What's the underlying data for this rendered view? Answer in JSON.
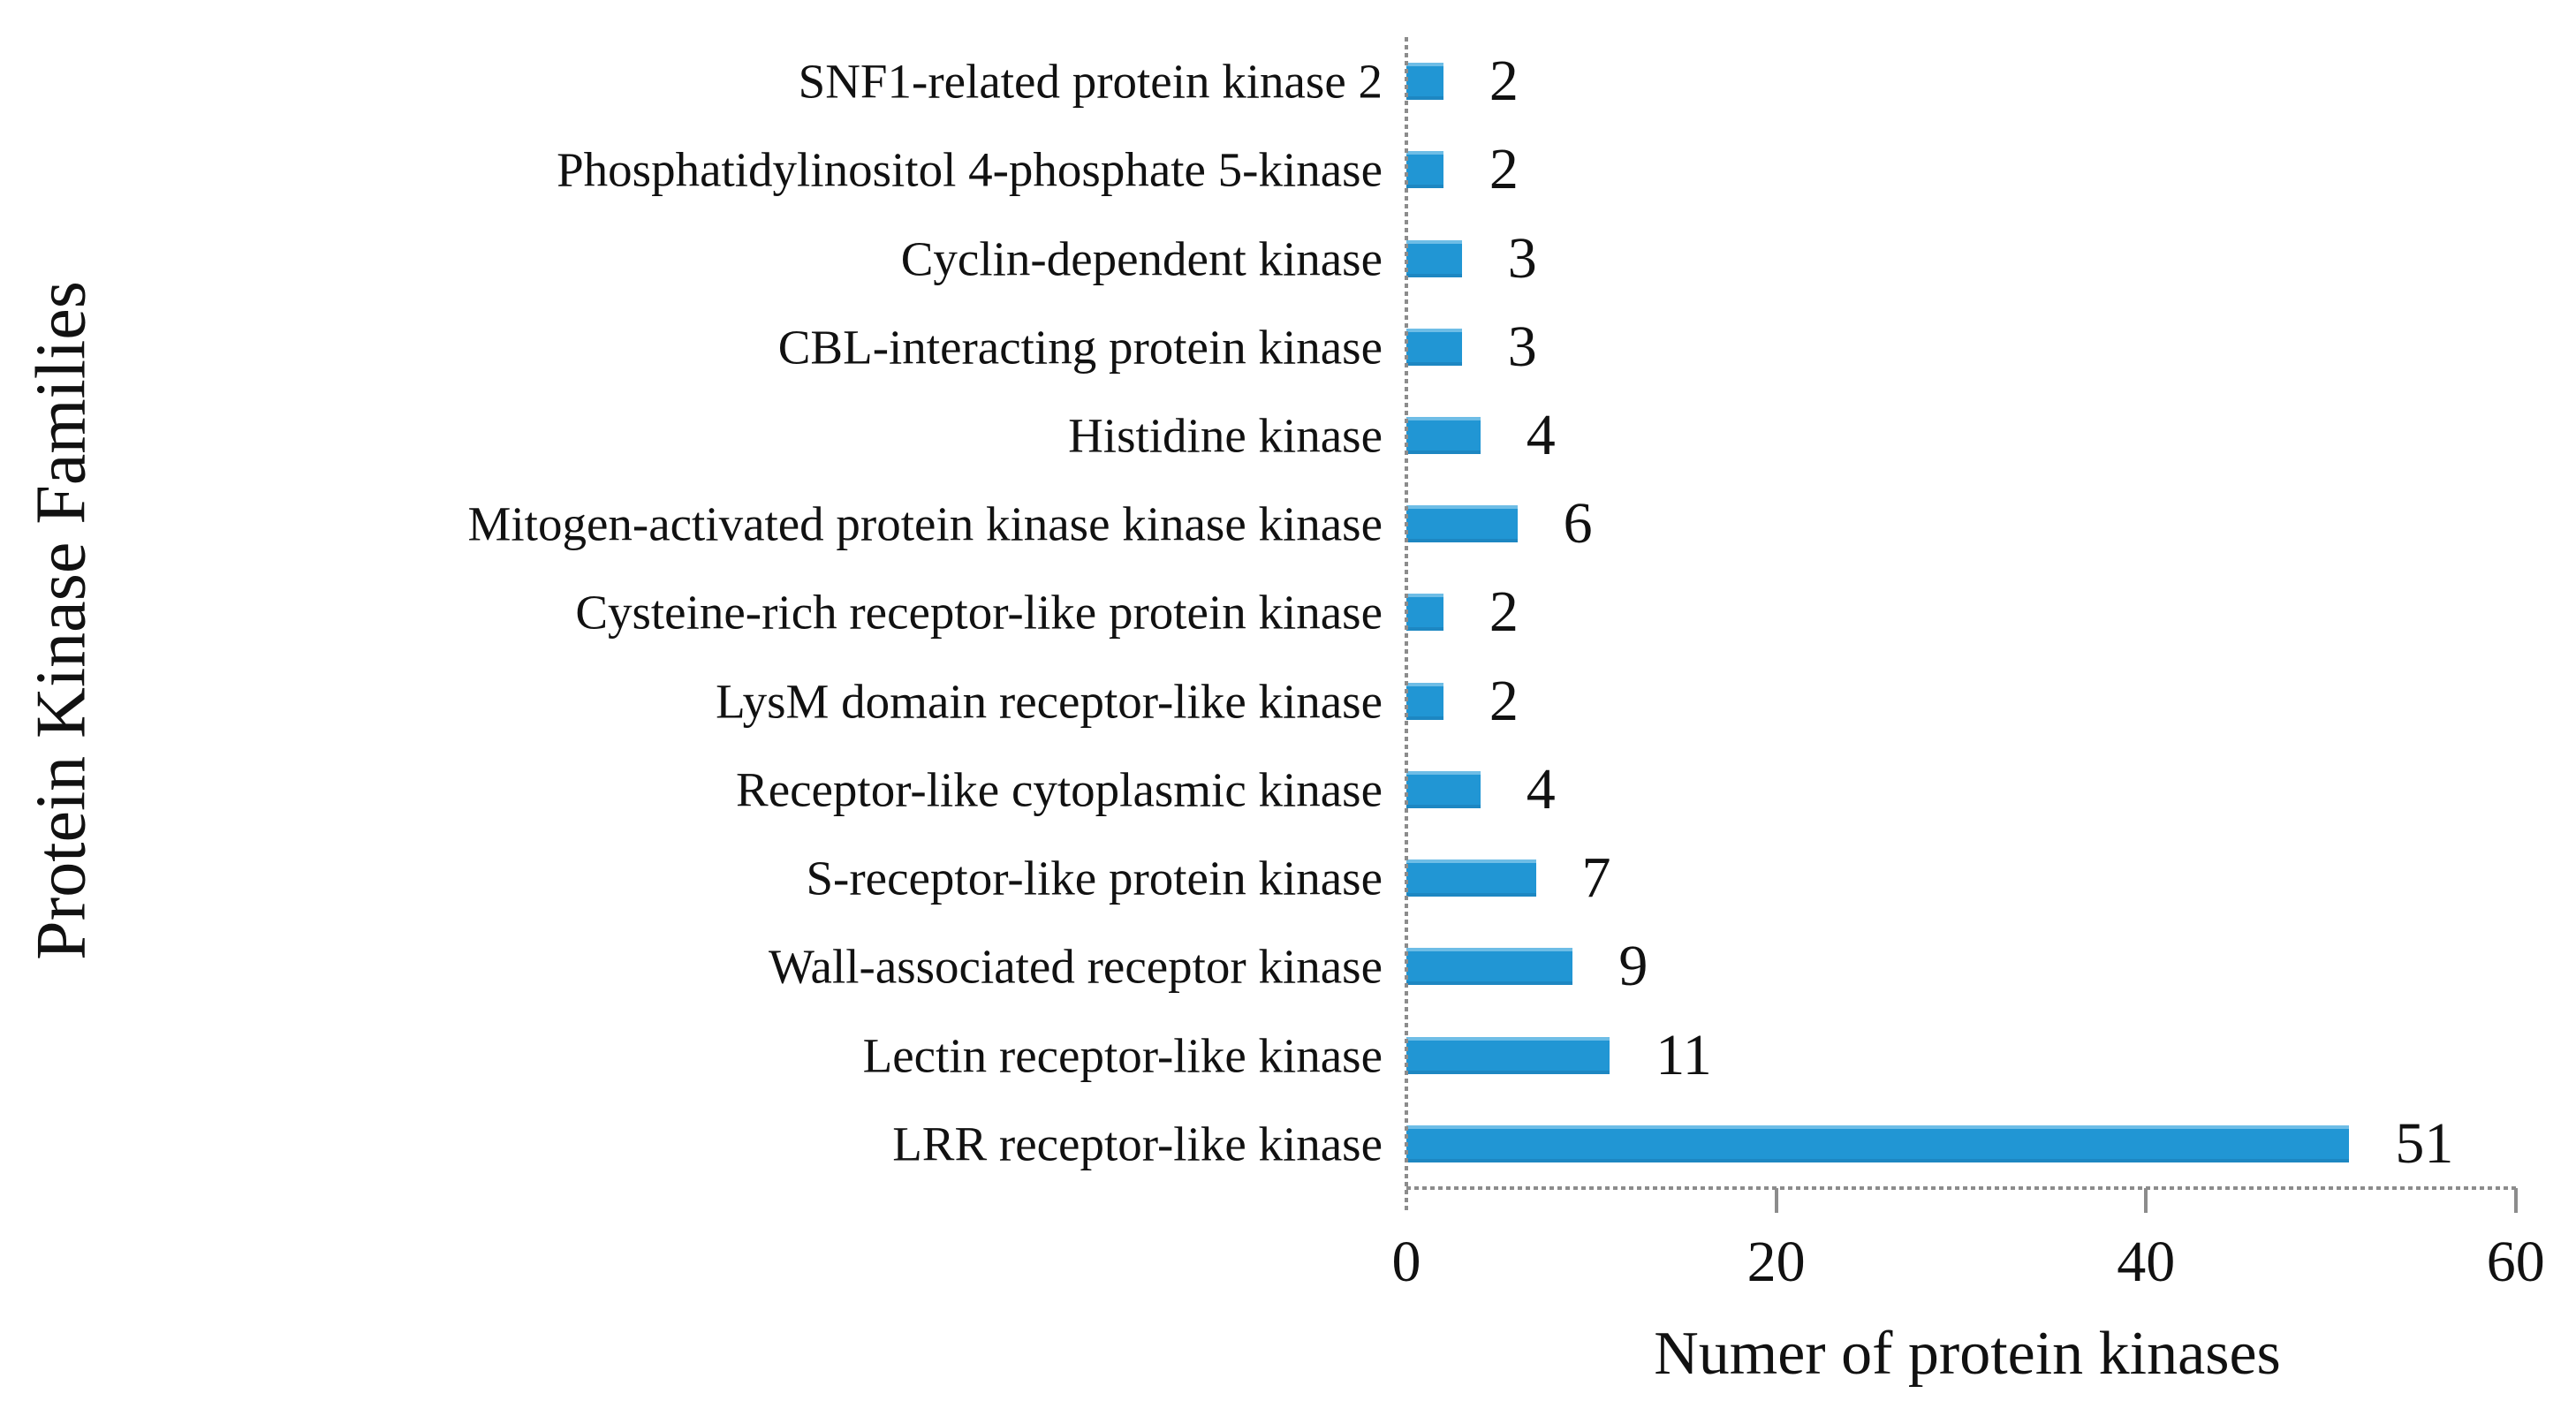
{
  "figure": {
    "background": "#ffffff"
  },
  "chart_data": {
    "type": "bar",
    "orientation": "horizontal",
    "title": "",
    "xlabel": "Numer of protein kinases",
    "ylabel": "Protein Kinase Families",
    "xlim": [
      0,
      60
    ],
    "xticks": [
      0,
      20,
      40,
      60
    ],
    "grid": false,
    "legend": false,
    "data_labels_shown": true,
    "bar_color": "#2196d4",
    "axis_color": "#8c8c8c",
    "text_color": "#111111",
    "categories": [
      "SNF1-related protein kinase 2",
      "Phosphatidylinositol 4-phosphate 5-kinase",
      "Cyclin-dependent kinase",
      "CBL-interacting protein kinase",
      "Histidine kinase",
      "Mitogen-activated protein kinase kinase kinase",
      "Cysteine-rich receptor-like protein kinase",
      "LysM domain receptor-like kinase",
      "Receptor-like cytoplasmic kinase",
      "S-receptor-like protein kinase",
      "Wall-associated receptor kinase",
      "Lectin receptor-like kinase",
      "LRR receptor-like kinase"
    ],
    "values": [
      2,
      2,
      3,
      3,
      4,
      6,
      2,
      2,
      4,
      7,
      9,
      11,
      51
    ],
    "data_labels": [
      "2",
      "2",
      "3",
      "3",
      "4",
      "6",
      "2",
      "2",
      "4",
      "7",
      "9",
      "11",
      "51"
    ]
  }
}
